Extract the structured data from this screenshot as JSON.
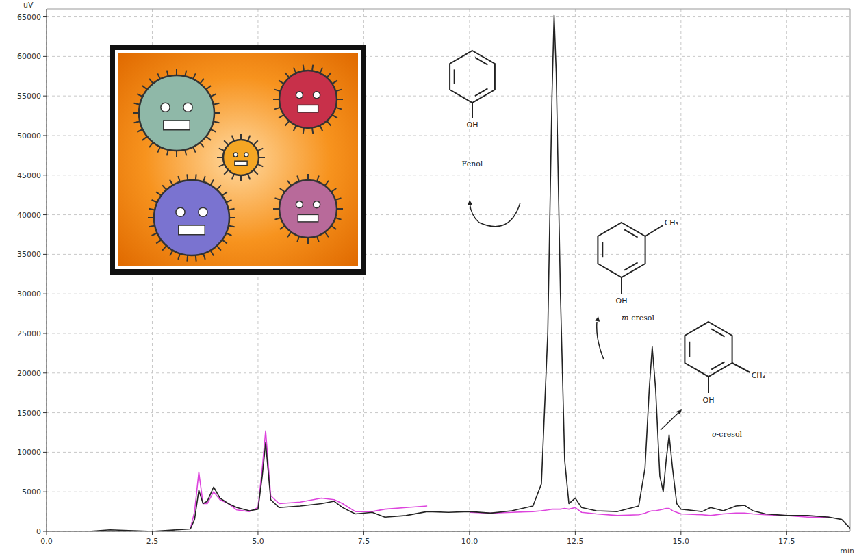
{
  "chart_data": {
    "type": "line",
    "x_label": "min",
    "y_label": "uV",
    "x": [
      1.0,
      1.5,
      2.5,
      3.4,
      3.5,
      3.6,
      3.7,
      3.8,
      3.95,
      4.1,
      4.3,
      4.5,
      4.8,
      5.0,
      5.1,
      5.18,
      5.3,
      5.5,
      6.0,
      6.5,
      6.8,
      7.0,
      7.3,
      7.7,
      8.0,
      8.5,
      9.0,
      9.5,
      10.0,
      10.5,
      11.0,
      11.5,
      11.7,
      11.85,
      11.95,
      12.0,
      12.05,
      12.15,
      12.25,
      12.35,
      12.5,
      12.65,
      13.0,
      13.5,
      14.0,
      14.15,
      14.25,
      14.32,
      14.4,
      14.5,
      14.58,
      14.65,
      14.72,
      14.8,
      14.9,
      15.0,
      15.5,
      15.7,
      16.0,
      16.3,
      16.5,
      16.7,
      17.0,
      17.5,
      18.0,
      18.5,
      18.8,
      19.0
    ],
    "series": [
      {
        "color": "#222222",
        "values": [
          0,
          200,
          0,
          300,
          1500,
          5200,
          3500,
          3800,
          5600,
          4200,
          3500,
          3000,
          2600,
          2800,
          7000,
          11200,
          4000,
          3000,
          3200,
          3500,
          3800,
          3000,
          2200,
          2400,
          1800,
          2000,
          2500,
          2400,
          2500,
          2300,
          2600,
          3200,
          6000,
          25000,
          55000,
          65200,
          58000,
          30000,
          9000,
          3500,
          4200,
          3000,
          2600,
          2500,
          3200,
          8000,
          18000,
          23300,
          18000,
          7000,
          5000,
          9000,
          12200,
          8000,
          3500,
          2800,
          2500,
          3000,
          2600,
          3200,
          3300,
          2600,
          2200,
          2000,
          2000,
          1800,
          1500,
          400
        ]
      },
      {
        "color": "#dd44dd",
        "values": [
          null,
          null,
          null,
          300,
          2500,
          7500,
          3500,
          3500,
          5000,
          4000,
          3500,
          2700,
          2500,
          3000,
          8000,
          12700,
          4500,
          3500,
          3700,
          4200,
          4000,
          3500,
          2500,
          2500,
          2800,
          3000,
          3200,
          null,
          2400,
          2300,
          2400,
          2500,
          2600,
          2700,
          2800,
          2800,
          2800,
          2800,
          2900,
          2800,
          3000,
          2400,
          2200,
          2000,
          2100,
          2300,
          2500,
          2600,
          2600,
          2700,
          2800,
          2900,
          2900,
          2600,
          2400,
          2200,
          2100,
          2000,
          2200,
          2300,
          2300,
          2200,
          2100,
          2000,
          1800,
          1800,
          null,
          null
        ]
      }
    ],
    "xlim": [
      0,
      19
    ],
    "xticks": [
      {
        "value": 0,
        "label": "0.0"
      },
      2.5,
      {
        "value": 5,
        "label": "5.0"
      },
      7.5,
      {
        "value": 10,
        "label": "10.0"
      },
      12.5,
      {
        "value": 15,
        "label": "15.0"
      },
      17.5
    ],
    "ylim": [
      0,
      66000
    ],
    "yticks": [
      0,
      5000,
      10000,
      15000,
      20000,
      25000,
      30000,
      35000,
      40000,
      45000,
      50000,
      55000,
      60000,
      65000
    ],
    "grid": true,
    "annotations": [
      {
        "name": "Fenol",
        "groups": [
          "OH"
        ]
      },
      {
        "name": "m-cresol",
        "groups": [
          "OH",
          "CH₃"
        ]
      },
      {
        "name": "o-cresol",
        "groups": [
          "OH",
          "CH₃"
        ]
      }
    ]
  }
}
